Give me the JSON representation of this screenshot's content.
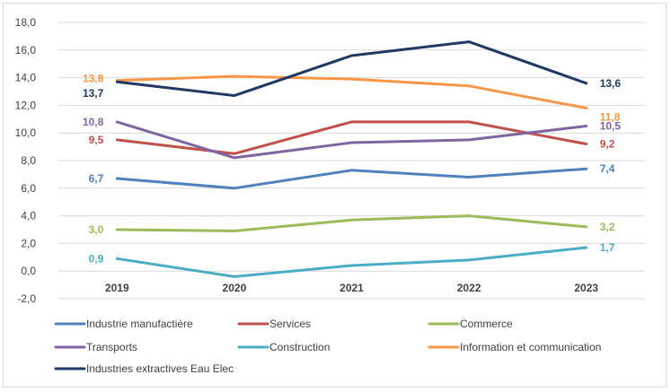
{
  "chart_data": {
    "type": "line",
    "categories": [
      "2019",
      "2020",
      "2021",
      "2022",
      "2023"
    ],
    "ylim": [
      -2,
      18
    ],
    "yticks": [
      "-2,0",
      "0,0",
      "2,0",
      "4,0",
      "6,0",
      "8,0",
      "10,0",
      "12,0",
      "14,0",
      "16,0",
      "18,0"
    ],
    "grid": true,
    "legend_position": "bottom",
    "series": [
      {
        "name": "Industrie manufactière",
        "color": "#4f81bd",
        "values": [
          6.7,
          6.0,
          7.3,
          6.8,
          7.4
        ],
        "labels": [
          "6,7",
          "",
          "",
          "",
          "7,4"
        ]
      },
      {
        "name": "Services",
        "color": "#c0504d",
        "values": [
          9.5,
          8.5,
          10.8,
          10.8,
          9.2
        ],
        "labels": [
          "9,5",
          "",
          "",
          "",
          "9,2"
        ]
      },
      {
        "name": "Commerce",
        "color": "#9bbb59",
        "values": [
          3.0,
          2.9,
          3.7,
          4.0,
          3.2
        ],
        "labels": [
          "3,0",
          "",
          "",
          "",
          "3,2"
        ]
      },
      {
        "name": "Transports",
        "color": "#8064a2",
        "values": [
          10.8,
          8.2,
          9.3,
          9.5,
          10.5
        ],
        "labels": [
          "10,8",
          "",
          "",
          "",
          "10,5"
        ]
      },
      {
        "name": "Construction",
        "color": "#4bacc6",
        "values": [
          0.9,
          -0.4,
          0.4,
          0.8,
          1.7
        ],
        "labels": [
          "0,9",
          "",
          "",
          "",
          "1,7"
        ]
      },
      {
        "name": "Information et communication",
        "color": "#f79646",
        "values": [
          13.8,
          14.1,
          13.9,
          13.4,
          11.8
        ],
        "labels": [
          "13,8",
          "",
          "",
          "",
          "11,8"
        ]
      },
      {
        "name": "Industries extractives Eau Elec",
        "color": "#1f3864",
        "values": [
          13.7,
          12.7,
          15.6,
          16.6,
          13.6
        ],
        "labels": [
          "13,7",
          "",
          "",
          "",
          "13,6"
        ]
      }
    ]
  }
}
